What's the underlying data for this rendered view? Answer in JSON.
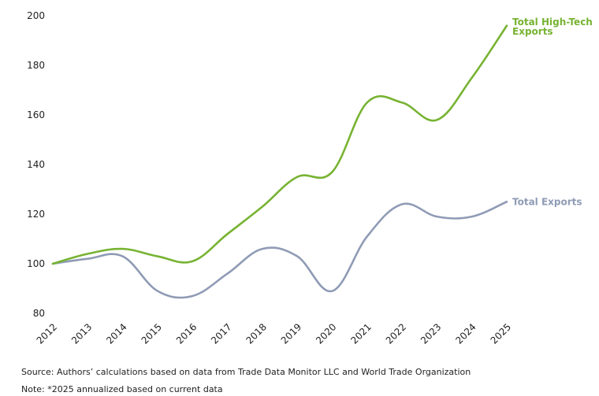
{
  "chart_data": {
    "type": "line",
    "title": "",
    "xlabel": "",
    "ylabel": "",
    "categories": [
      "2012",
      "2013",
      "2014",
      "2015",
      "2016",
      "2017",
      "2018",
      "2019",
      "2020",
      "2021",
      "2022",
      "2023",
      "2024",
      "2025"
    ],
    "ylim": [
      80,
      200
    ],
    "yticks": [
      80,
      100,
      120,
      140,
      160,
      180,
      200
    ],
    "grid": false,
    "legend": "inline labels at line ends",
    "series": [
      {
        "name": "Total High-Tech Exports",
        "label_lines": [
          "Total High-Tech",
          "Exports"
        ],
        "color": "#77b332",
        "values": [
          100,
          104,
          106,
          103,
          101,
          112,
          123,
          135,
          137,
          165,
          165,
          158,
          175,
          196
        ]
      },
      {
        "name": "Total Exports",
        "label_lines": [
          "Total Exports"
        ],
        "color": "#8f9bb5",
        "values": [
          100,
          102,
          103,
          89,
          87,
          96,
          106,
          103,
          89,
          111,
          124,
          119,
          119,
          125
        ]
      }
    ]
  },
  "footer": {
    "source": "Source: Authors’ calculations based on data from Trade Data Monitor LLC and World Trade Organization",
    "note": "Note: *2025 annualized based on current data"
  }
}
